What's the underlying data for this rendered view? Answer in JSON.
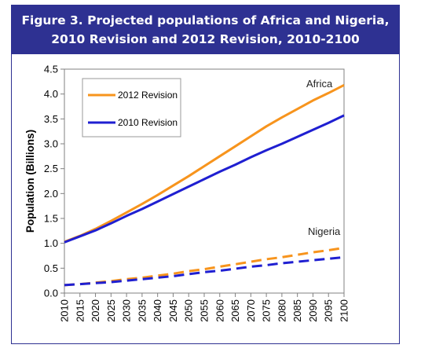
{
  "figure": {
    "title_line1": "Figure 3.  Projected populations of Africa and Nigeria,",
    "title_line2": "2010 Revision and 2012 Revision, 2010-2100"
  },
  "chart_data": {
    "type": "line",
    "ylabel": "Population (Billions)",
    "ylim": [
      0,
      4.5
    ],
    "yticks": [
      "0.0",
      "0.5",
      "1.0",
      "1.5",
      "2.0",
      "2.5",
      "3.0",
      "3.5",
      "4.0",
      "4.5"
    ],
    "x": [
      2010,
      2015,
      2020,
      2025,
      2030,
      2035,
      2040,
      2045,
      2050,
      2055,
      2060,
      2065,
      2070,
      2075,
      2080,
      2085,
      2090,
      2095,
      2100
    ],
    "xticks": [
      "2010",
      "2015",
      "2020",
      "2025",
      "2030",
      "2035",
      "2040",
      "2045",
      "2050",
      "2055",
      "2060",
      "2065",
      "2070",
      "2075",
      "2080",
      "2085",
      "2090",
      "2095",
      "2100"
    ],
    "grid": false,
    "legend_position": "top-left",
    "legend": [
      {
        "label": "2012 Revision",
        "color": "#f7941d"
      },
      {
        "label": "2010 Revision",
        "color": "#1f1fd1"
      }
    ],
    "annotations": [
      "Africa",
      "Nigeria"
    ],
    "series": [
      {
        "region": "Africa",
        "revision": "2012 Revision",
        "color": "#f7941d",
        "dash": "solid",
        "values": [
          1.03,
          1.15,
          1.29,
          1.45,
          1.62,
          1.79,
          1.97,
          2.16,
          2.35,
          2.55,
          2.75,
          2.95,
          3.15,
          3.35,
          3.53,
          3.7,
          3.87,
          4.02,
          4.18
        ]
      },
      {
        "region": "Africa",
        "revision": "2010 Revision",
        "color": "#1f1fd1",
        "dash": "solid",
        "values": [
          1.02,
          1.14,
          1.26,
          1.4,
          1.55,
          1.69,
          1.84,
          1.99,
          2.14,
          2.29,
          2.44,
          2.58,
          2.73,
          2.87,
          3.0,
          3.14,
          3.28,
          3.42,
          3.57
        ]
      },
      {
        "region": "Nigeria",
        "revision": "2012 Revision",
        "color": "#f7941d",
        "dash": "dashed",
        "values": [
          0.16,
          0.18,
          0.21,
          0.24,
          0.28,
          0.31,
          0.35,
          0.39,
          0.44,
          0.48,
          0.53,
          0.58,
          0.63,
          0.68,
          0.72,
          0.77,
          0.82,
          0.86,
          0.91
        ]
      },
      {
        "region": "Nigeria",
        "revision": "2010 Revision",
        "color": "#1f1fd1",
        "dash": "dashed",
        "values": [
          0.16,
          0.18,
          0.2,
          0.22,
          0.25,
          0.28,
          0.31,
          0.34,
          0.38,
          0.42,
          0.45,
          0.49,
          0.53,
          0.56,
          0.6,
          0.63,
          0.66,
          0.69,
          0.72
        ]
      }
    ]
  }
}
